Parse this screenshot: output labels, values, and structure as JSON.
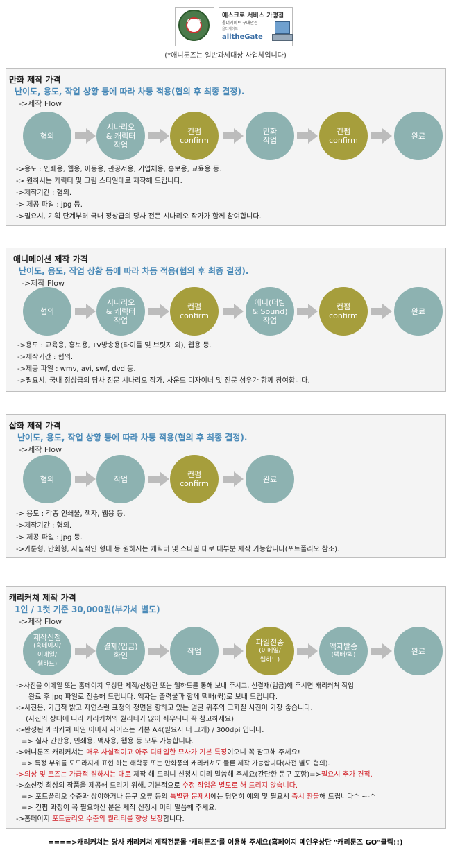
{
  "header": {
    "seal_text": "AEGIS",
    "badge_title": "에스크로 서비스 가맹점",
    "badge_sub": "올더게이트 구매안전",
    "badge_sub2": "올더게이트",
    "badge_brand": "alltheGate",
    "notice": "(*애니툰즈는 일반과세대상 사업체입니다)"
  },
  "icons": {
    "arrow": "right-arrow-icon",
    "seal": "escrow-seal-icon",
    "computer": "computer-icon"
  },
  "colors": {
    "circle_blue": "#8db2b1",
    "circle_olive": "#a69e3c",
    "subtitle": "#4a8ab8",
    "highlight_red": "#d0161e"
  },
  "sections": [
    {
      "title": "만화 제작 가격",
      "subtitle": "난이도, 용도, 작업 상황 등에 따라 차등 적용(협의 후 최종 결정).",
      "flow_label": "->제작 Flow",
      "steps": [
        "협의",
        "시나리오\n& 캐릭터\n작업",
        "컨펌\nconfirm",
        "만화\n작업",
        "컨펌\nconfirm",
        "완료"
      ],
      "lines": [
        "->용도 : 인쇄용, 웹용, 아동용, 관공서용, 기업체용, 홍보용, 교육용 등.",
        "-> 원하시는 캐릭터 및 그림 스타일대로 제작해 드립니다.",
        "->제작기간 : 협의.",
        "-> 제공 파일 : jpg 등.",
        "->필요시, 기획 단계부터 국내 정상급의 당사 전문 시나리오 작가가 함께 참여합니다."
      ]
    },
    {
      "title": "애니메이션 제작 가격",
      "subtitle": "난이도, 용도, 작업 상황 등에 따라 차등 적용(협의 후 최종 결정).",
      "flow_label": "->제작 Flow",
      "steps": [
        "협의",
        "시나리오\n& 캐릭터\n작업",
        "컨펌\nconfirm",
        "애니(더빙\n& Sound)\n작업",
        "컨펌\nconfirm",
        "완료"
      ],
      "lines": [
        "->용도 : 교육용, 홍보용, TV방송용(타이틀 및 브릿지 외), 웹용 등.",
        "->제작기간 : 협의.",
        "->제공 파일 : wmv, avi, swf, dvd 등.",
        "->필요시, 국내 정상급의 당사 전문 시나리오 작가, 사운드 디자이너 및 전문 성우가 함께 참여합니다."
      ]
    },
    {
      "title": "삽화 제작 가격",
      "subtitle": "난이도, 용도, 작업 상황 등에 따라 차등 적용(협의 후 최종 결정).",
      "flow_label": "->제작 Flow",
      "steps": [
        "협의",
        "작업",
        "컨펌\nconfirm",
        "완료"
      ],
      "lines": [
        "-> 용도 : 각종 인쇄물, 책자, 웹용 등.",
        "->제작기간 : 협의.",
        "-> 제공 파일 : jpg 등.",
        "->카툰형, 만화형, 사실적인 형태 등 원하시는 캐릭터 및 스타일 대로 대부분 제작 가능합니다(포트폴리오 참조)."
      ]
    },
    {
      "title": "캐리커처 제작 가격",
      "subtitle": "1인 / 1컷 기준 30,000원(부가세 별도)",
      "flow_label": "->제작 Flow",
      "steps": [
        "제작신청",
        "(홈페이지/\n이메일/\n웹하드)",
        "결재(입금)\n확인",
        "작업",
        "파일전송",
        "(이메일/\n웹하드)",
        "액자발송",
        "(택배/퀵)",
        "완료"
      ],
      "lines": [
        "->사진을 이메일 또는 홈페이지 우상단 제작/신청란 또는 웹하드를 통해 보내 주시고, 선결재(입금)해 주시면 캐리커쳐 작업",
        "완료 후 jpg 파일로 전송해 드립니다. 액자는 출력물과 함께 택배(퀵)로 보내 드립니다.",
        "->사진은, 가급적 밝고 자연스런 표정의 정면을 향하고 있는 얼굴 위주의 고화질 사진이 가장 좋습니다.",
        "(사진의 상태에 따라 캐리커쳐의 퀄리티가 많이 좌우되니 꼭 참고하세요)",
        "->완성된 캐리커쳐 파일 이미지 사이즈는 기본 A4(필요시 더 크게) / 300dpi 입니다.",
        "=> 실사 간판용, 인쇄용, 액자용, 웹용 등 모두 가능합니다.",
        "->애니툰즈 캐리커쳐는 ",
        "매우 사실적이고 아주 디테일한 묘사가 기본 특징",
        "이오니 꼭 참고해 주세요!",
        "=> 특정 부위를 도드라지게 표현 하는 해학풍 또는 만화풍의 캐리커쳐도 물론 제작 가능합니다(사전 별도 협의).",
        "->의상 및 포즈는 가급적 원하시는 대로",
        " 제작 해 드리니 신청시 미리 말씀해 주세요(간단한 문구 포함)=>",
        "필요시 추가 견적.",
        "->소신껏 최상의 작품을 제공해 드리기 위해, 기본적으로 ",
        "수정 작업은 별도로 해 드리지 않습니다.",
        "=> 포트폴리오 수준과 상이하거나 문구 오류 등의 ",
        "특별한 문제시",
        "에는 당연히 예외 및 필요시 ",
        "즉시 환불",
        "해 드립니다^ ~-^",
        "=> 컨펌 과정이 꼭 필요하신 분은 제작 신청시 미리 말씀해 주세요.",
        "->홈페이지 ",
        "포트폴리오 수준의 퀄리티를 향상 보장",
        "합니다."
      ]
    }
  ],
  "footer": "====>캐리커쳐는 당사 캐리커쳐 제작전문몰 '캐리툰즈'를 이용해 주세요(홈페이지 메인우상단 \"캐리툰즈 GO\"클릭!!)"
}
